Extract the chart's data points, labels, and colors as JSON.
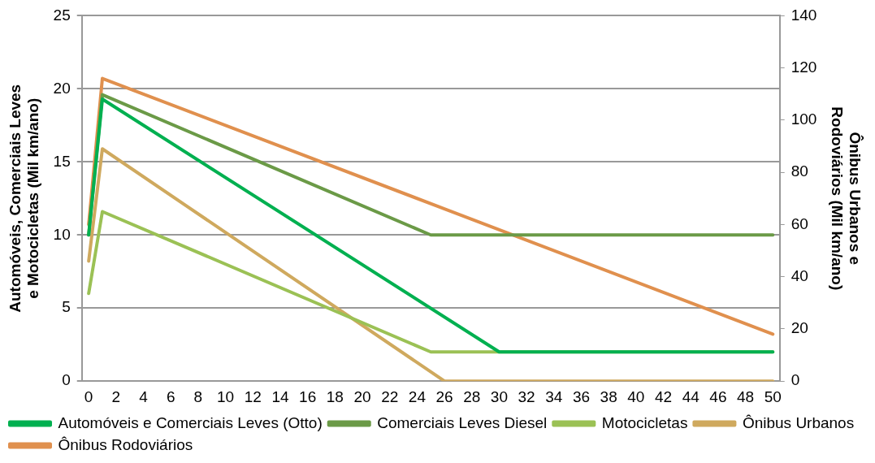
{
  "chart_data": {
    "type": "line",
    "xlim": [
      -0.5,
      50.5
    ],
    "xticks": [
      0,
      2,
      4,
      6,
      8,
      10,
      12,
      14,
      16,
      18,
      20,
      22,
      24,
      26,
      28,
      30,
      32,
      34,
      36,
      38,
      40,
      42,
      44,
      46,
      48,
      50
    ],
    "ylim": [
      0,
      25
    ],
    "yticks": [
      0,
      5,
      10,
      15,
      20,
      25
    ],
    "y2lim": [
      0,
      140
    ],
    "y2ticks": [
      0,
      20,
      40,
      60,
      80,
      100,
      120,
      140
    ],
    "ylabel": "Automóveis, Comerciais Leves e Motocicletas (Mil km/ano)",
    "y2label": "Ônibus Urbanos e Rodoviários (Mil km/ano)",
    "grid": "y",
    "legend": "bottom",
    "marker": "none",
    "line_style": "solid",
    "series": [
      {
        "name": "Automóveis e Comerciais Leves (Otto)",
        "color": "#00b050",
        "x": [
          0,
          1,
          30,
          50
        ],
        "values": [
          10,
          19.3,
          2,
          2
        ]
      },
      {
        "name": "Comerciais Leves Diesel",
        "color": "#6b9a47",
        "x": [
          0,
          1,
          25,
          50
        ],
        "values": [
          10,
          19.6,
          10,
          10
        ]
      },
      {
        "name": "Motocicletas",
        "color": "#9bc155",
        "x": [
          0,
          1,
          25,
          50
        ],
        "values": [
          6,
          11.6,
          2,
          2
        ]
      },
      {
        "name": "Ônibus Urbanos",
        "color": "#cfa95e",
        "axis": "y2",
        "x": [
          0,
          1,
          26,
          50
        ],
        "values": [
          46,
          89,
          0,
          0
        ]
      },
      {
        "name": "Ônibus Rodoviários",
        "color": "#e0904e",
        "axis": "y2",
        "x": [
          0,
          1,
          50
        ],
        "values": [
          60,
          116,
          18
        ]
      }
    ]
  }
}
